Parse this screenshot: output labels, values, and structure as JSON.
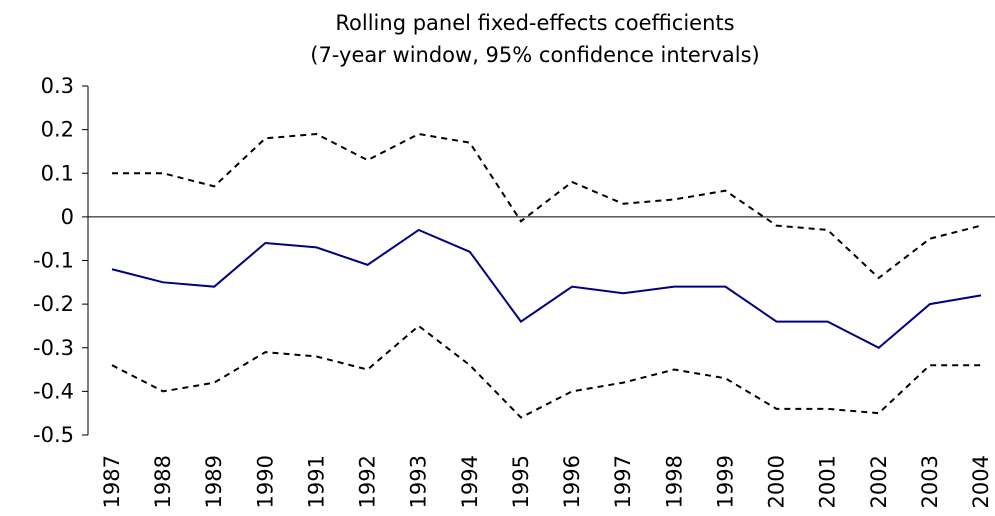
{
  "chart_data": {
    "type": "line",
    "title": "Rolling panel fixed-effects coefficients",
    "subtitle": "(7-year window, 95% confidence intervals)",
    "categories": [
      "1987",
      "1988",
      "1989",
      "1990",
      "1991",
      "1992",
      "1993",
      "1994",
      "1995",
      "1996",
      "1997",
      "1998",
      "1999",
      "2000",
      "2001",
      "2002",
      "2003",
      "2004"
    ],
    "series": [
      {
        "color": "#000080",
        "dashed": false,
        "values": [
          -0.12,
          -0.15,
          -0.16,
          -0.06,
          -0.07,
          -0.11,
          -0.03,
          -0.08,
          -0.24,
          -0.16,
          -0.175,
          -0.16,
          -0.16,
          -0.24,
          -0.24,
          -0.3,
          -0.2,
          -0.18
        ]
      },
      {
        "color": "#000000",
        "dashed": true,
        "values": [
          0.1,
          0.1,
          0.07,
          0.18,
          0.19,
          0.13,
          0.19,
          0.17,
          -0.01,
          0.08,
          0.03,
          0.04,
          0.06,
          -0.02,
          -0.03,
          -0.14,
          -0.05,
          -0.02
        ]
      },
      {
        "color": "#000000",
        "dashed": true,
        "values": [
          -0.34,
          -0.4,
          -0.38,
          -0.31,
          -0.32,
          -0.35,
          -0.25,
          -0.34,
          -0.46,
          -0.4,
          -0.38,
          -0.35,
          -0.37,
          -0.44,
          -0.44,
          -0.45,
          -0.34,
          -0.34
        ]
      }
    ],
    "ylim": [
      -0.5,
      0.3
    ],
    "yticks": [
      -0.5,
      -0.4,
      -0.3,
      -0.2,
      -0.1,
      0,
      0.1,
      0.2,
      0.3
    ]
  }
}
